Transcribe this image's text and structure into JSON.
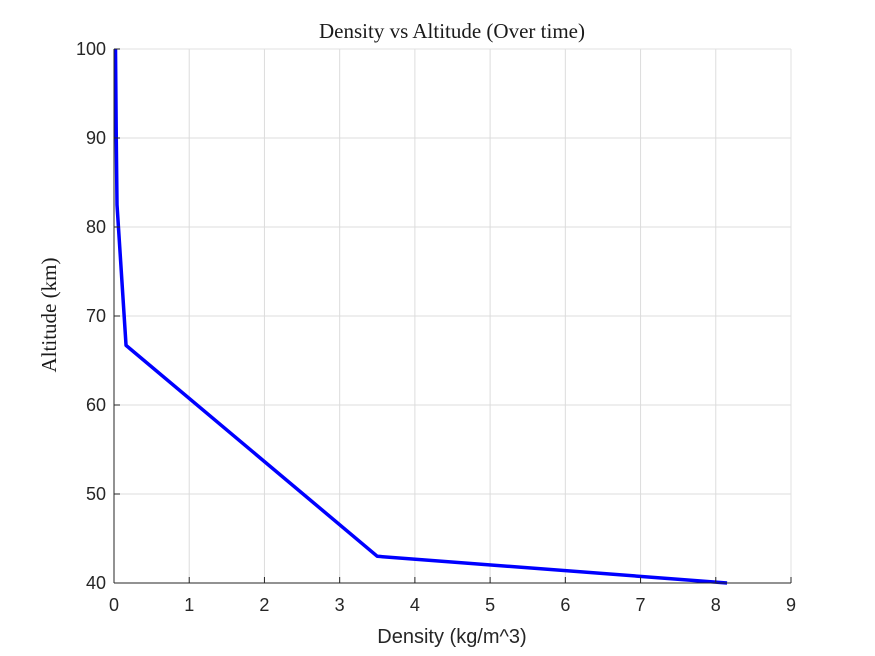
{
  "chart_data": {
    "type": "line",
    "title": "Density vs Altitude (Over time)",
    "xlabel": "Density (kg/m^3)",
    "ylabel": "Altitude (km)",
    "xlim": [
      0,
      9
    ],
    "ylim": [
      40,
      100
    ],
    "xticks": [
      0,
      1,
      2,
      3,
      4,
      5,
      6,
      7,
      8,
      9
    ],
    "yticks": [
      40,
      50,
      60,
      70,
      80,
      90,
      100
    ],
    "grid": true,
    "legend": "none",
    "series": [
      {
        "color": "#0000ff",
        "x": [
          0.02,
          0.03,
          0.04,
          0.16,
          3.5,
          8.15
        ],
        "y": [
          100,
          90,
          82.5,
          66.7,
          43.0,
          40.0
        ]
      }
    ]
  }
}
